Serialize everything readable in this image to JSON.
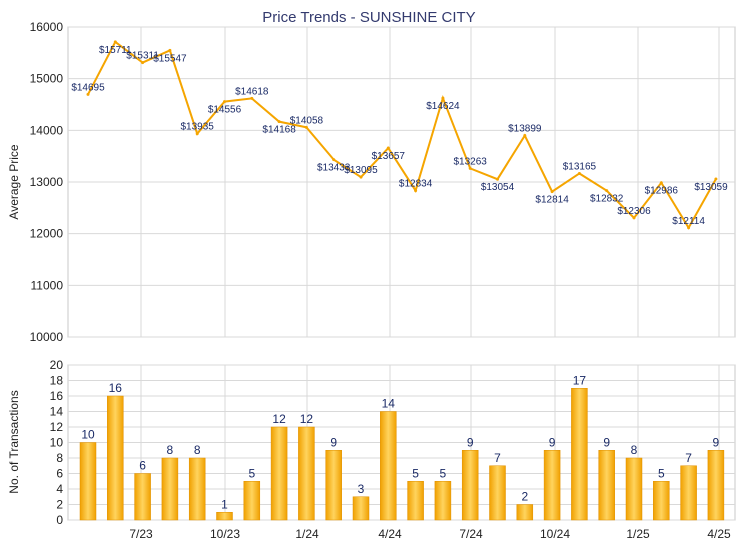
{
  "chart_data": [
    {
      "type": "line",
      "title": "Price Trends - SUNSHINE CITY",
      "ylabel": "Average Price",
      "ylim": [
        10000,
        16000
      ],
      "yticks": [
        10000,
        11000,
        12000,
        13000,
        14000,
        15000,
        16000
      ],
      "grid": true,
      "color": "#f5a500",
      "values": [
        14695,
        15711,
        15311,
        15547,
        13935,
        14556,
        14618,
        14168,
        14058,
        13433,
        13095,
        13657,
        12834,
        14624,
        13263,
        13054,
        13899,
        12814,
        13165,
        12832,
        12306,
        12986,
        12114,
        13059
      ],
      "labels": [
        "$14695",
        "$15711",
        "$15311",
        "$15547",
        "$13935",
        "$14556",
        "$14618",
        "$14168",
        "$14058",
        "$13433",
        "$13095",
        "$13657",
        "$12834",
        "$14624",
        "$13263",
        "$13054",
        "$13899",
        "$12814",
        "$13165",
        "$12832",
        "$12306",
        "$12986",
        "$12114",
        "$13059"
      ]
    },
    {
      "type": "bar",
      "ylabel": "No. of Transactions",
      "ylim": [
        0,
        20
      ],
      "yticks": [
        0,
        2,
        4,
        6,
        8,
        10,
        12,
        14,
        16,
        18,
        20
      ],
      "grid": true,
      "color": "#f5a500",
      "values": [
        10,
        16,
        6,
        8,
        8,
        1,
        5,
        12,
        12,
        9,
        3,
        14,
        5,
        5,
        9,
        7,
        2,
        9,
        17,
        9,
        8,
        5,
        7,
        9
      ],
      "xticks": [
        "7/23",
        "10/23",
        "1/24",
        "4/24",
        "7/24",
        "10/24",
        "1/25",
        "4/25"
      ]
    }
  ]
}
